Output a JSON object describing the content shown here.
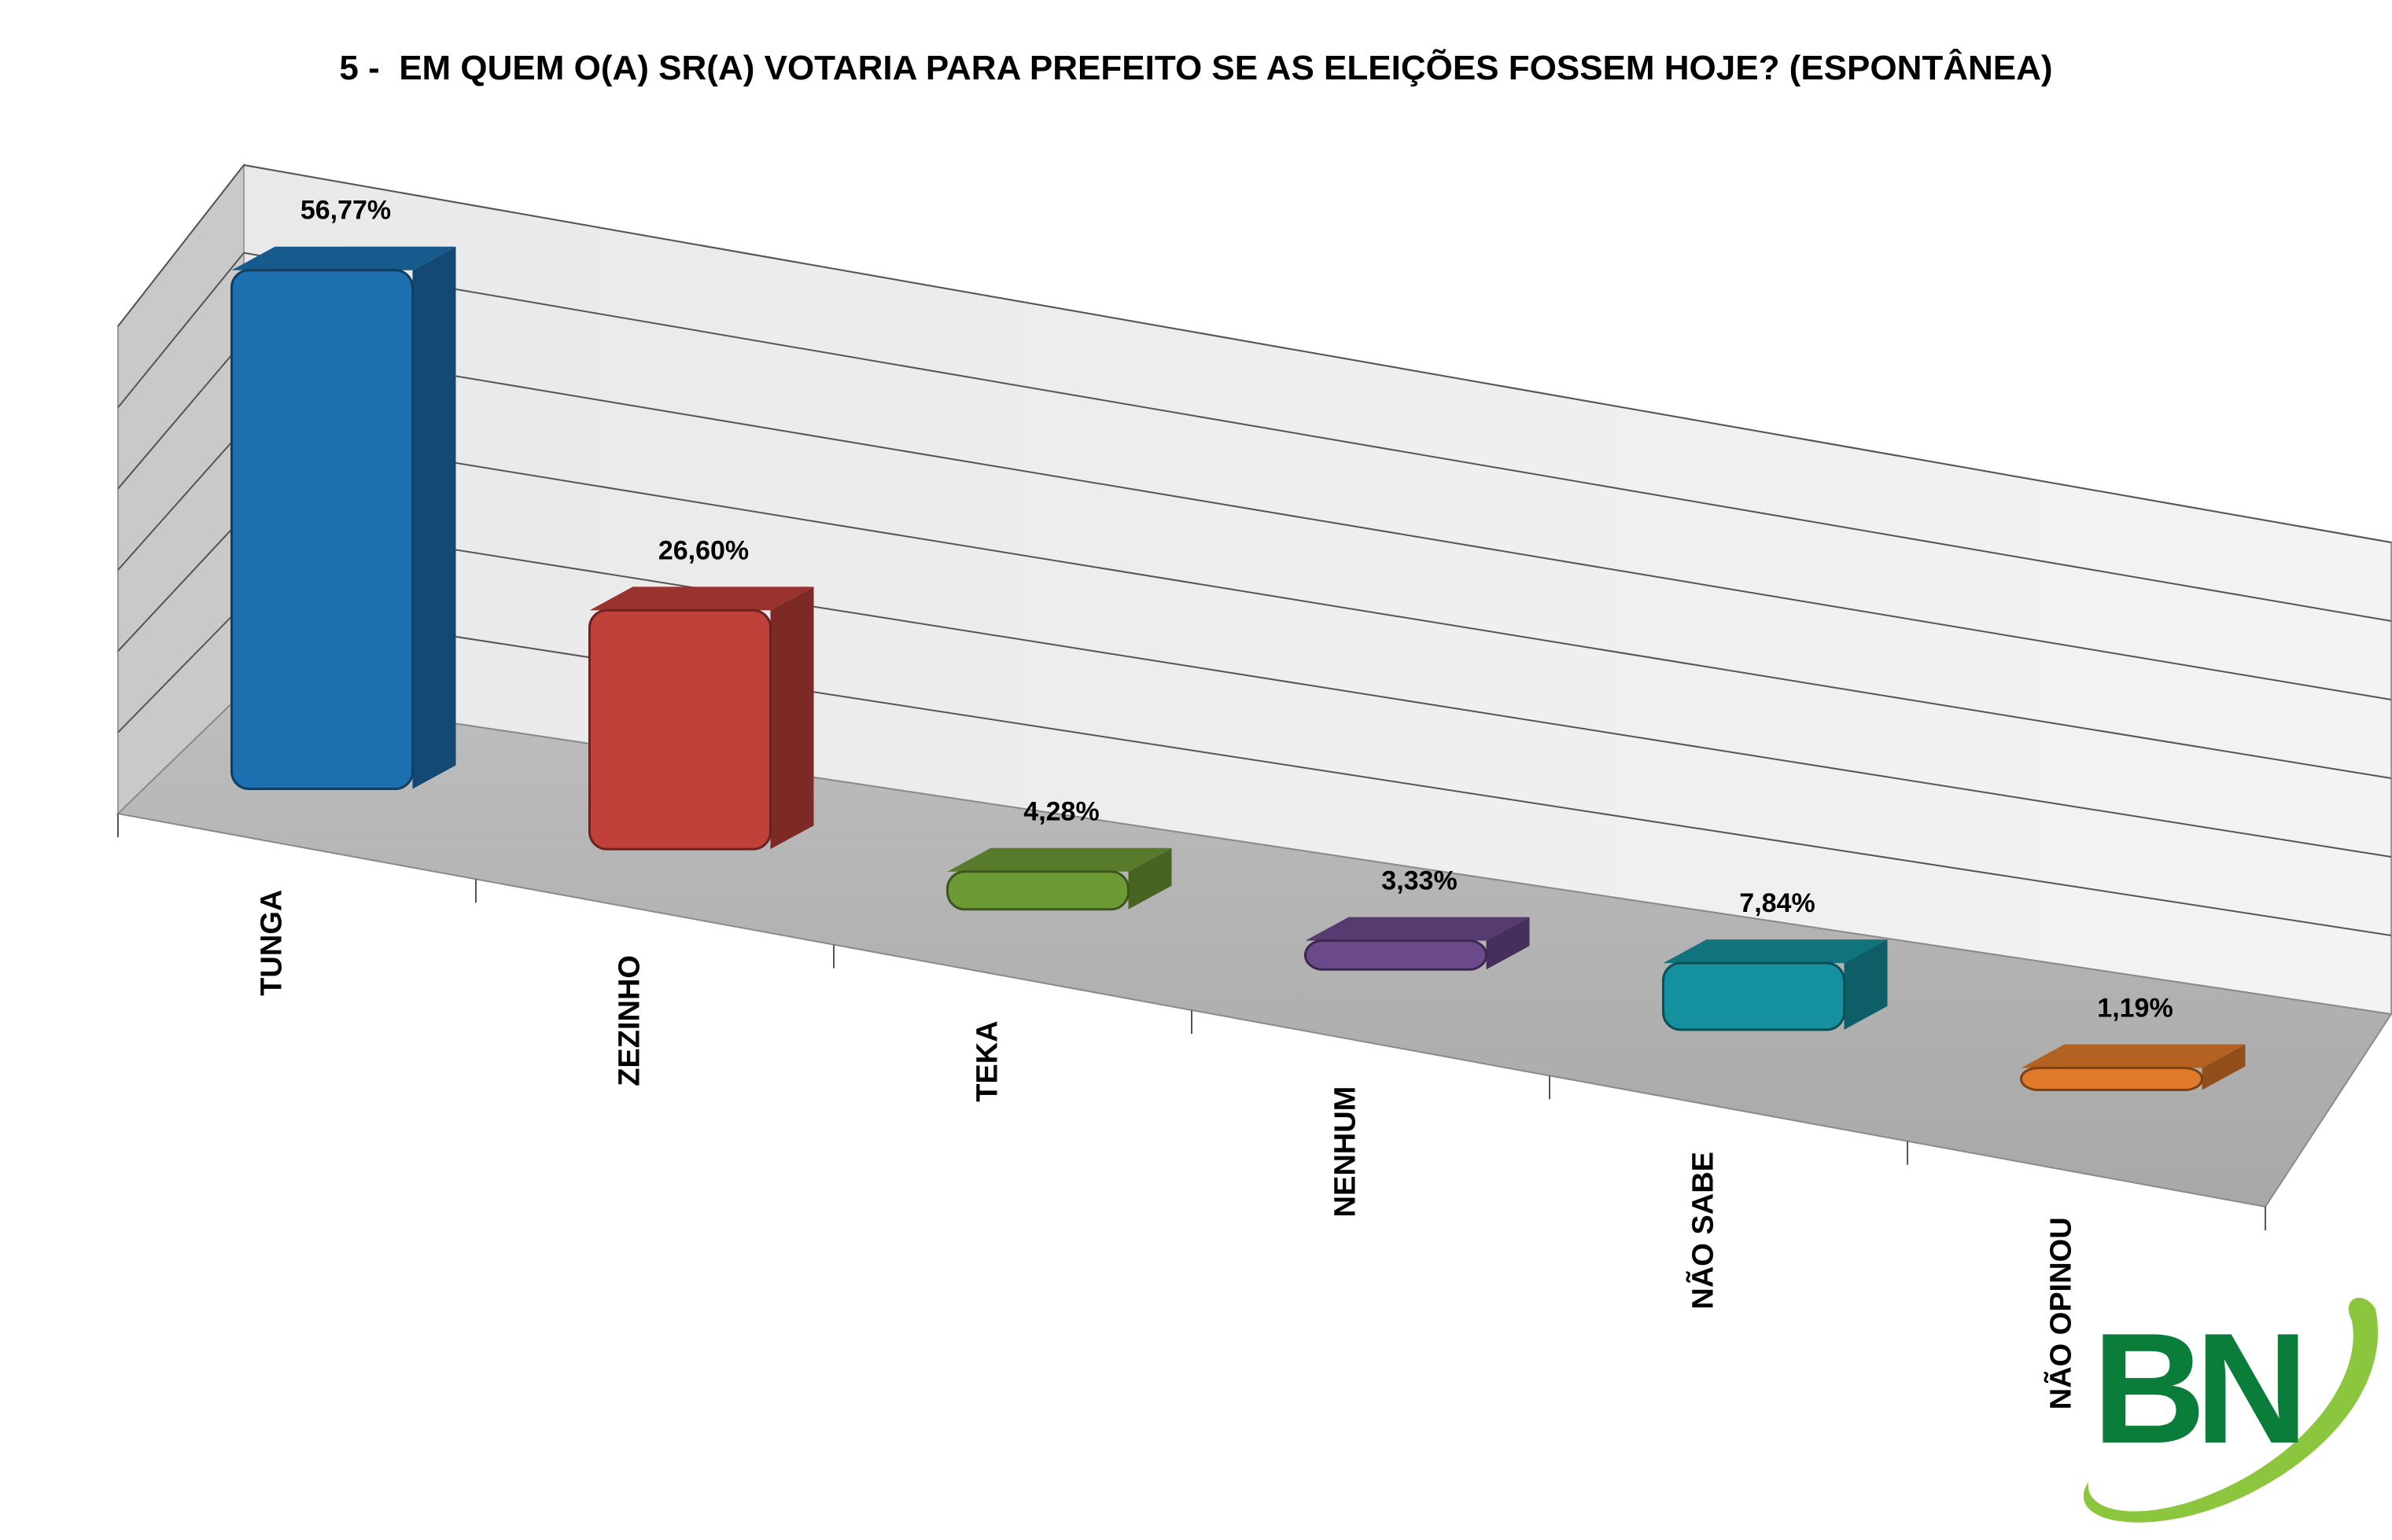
{
  "chart_data": {
    "type": "bar",
    "title": "5 -  EM QUEM O(A) SR(A) VOTARIA PARA PREFEITO SE AS ELEIÇÕES FOSSEM HOJE? (ESPONTÂNEA)",
    "categories": [
      "TUNGA",
      "ZEZINHO",
      "TEKA",
      "NENHUM",
      "NÃO SABE",
      "NÃO OPINOU"
    ],
    "values": [
      56.77,
      26.6,
      4.28,
      3.33,
      7.84,
      1.19
    ],
    "value_labels": [
      "56,77%",
      "26,60%",
      "4,28%",
      "3,33%",
      "7,84%",
      "1,19%"
    ],
    "colors": [
      "#1d70b0",
      "#c0403a",
      "#6e9a36",
      "#6b4a8c",
      "#14909e",
      "#e07a2a"
    ],
    "ylim": [
      0,
      60
    ],
    "grid": true,
    "legend": "none",
    "style": "3d-perspective"
  },
  "logo": {
    "text": "BN",
    "colors": {
      "letters": "#0b7d3a",
      "swoosh": "#8cc63f"
    }
  }
}
